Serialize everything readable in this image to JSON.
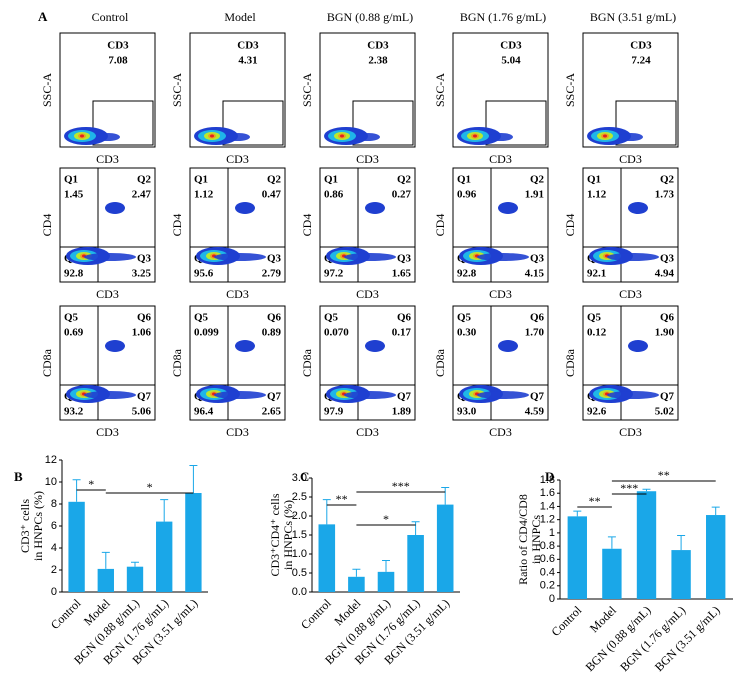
{
  "panel_a": {
    "label": "A",
    "columns": [
      "Control",
      "Model",
      "BGN (0.88 g/mL)",
      "BGN (1.76 g/mL)",
      "BGN (3.51 g/mL)"
    ],
    "rows": [
      {
        "y_axis": "SSC-A",
        "x_axis": "CD3",
        "gates": [
          [
            {
              "name": "CD3",
              "value": "7.08"
            }
          ],
          [
            {
              "name": "CD3",
              "value": "4.31"
            }
          ],
          [
            {
              "name": "CD3",
              "value": "2.38"
            }
          ],
          [
            {
              "name": "CD3",
              "value": "5.04"
            }
          ],
          [
            {
              "name": "CD3",
              "value": "7.24"
            }
          ]
        ]
      },
      {
        "y_axis": "CD4",
        "x_axis": "CD3",
        "gates": [
          [
            {
              "name": "Q1",
              "value": "1.45"
            },
            {
              "name": "Q2",
              "value": "2.47"
            },
            {
              "name": "Q3",
              "value": "3.25"
            },
            {
              "name": "Q4",
              "value": "92.8"
            }
          ],
          [
            {
              "name": "Q1",
              "value": "1.12"
            },
            {
              "name": "Q2",
              "value": "0.47"
            },
            {
              "name": "Q3",
              "value": "2.79"
            },
            {
              "name": "Q4",
              "value": "95.6"
            }
          ],
          [
            {
              "name": "Q1",
              "value": "0.86"
            },
            {
              "name": "Q2",
              "value": "0.27"
            },
            {
              "name": "Q3",
              "value": "1.65"
            },
            {
              "name": "Q4",
              "value": "97.2"
            }
          ],
          [
            {
              "name": "Q1",
              "value": "0.96"
            },
            {
              "name": "Q2",
              "value": "1.91"
            },
            {
              "name": "Q3",
              "value": "4.15"
            },
            {
              "name": "Q4",
              "value": "92.8"
            }
          ],
          [
            {
              "name": "Q1",
              "value": "1.12"
            },
            {
              "name": "Q2",
              "value": "1.73"
            },
            {
              "name": "Q3",
              "value": "4.94"
            },
            {
              "name": "Q4",
              "value": "92.1"
            }
          ]
        ]
      },
      {
        "y_axis": "CD8a",
        "x_axis": "CD3",
        "gates": [
          [
            {
              "name": "Q5",
              "value": "0.69"
            },
            {
              "name": "Q6",
              "value": "1.06"
            },
            {
              "name": "Q7",
              "value": "5.06"
            },
            {
              "name": "Q8",
              "value": "93.2"
            }
          ],
          [
            {
              "name": "Q5",
              "value": "0.099"
            },
            {
              "name": "Q6",
              "value": "0.89"
            },
            {
              "name": "Q7",
              "value": "2.65"
            },
            {
              "name": "Q8",
              "value": "96.4"
            }
          ],
          [
            {
              "name": "Q5",
              "value": "0.070"
            },
            {
              "name": "Q6",
              "value": "0.17"
            },
            {
              "name": "Q7",
              "value": "1.89"
            },
            {
              "name": "Q8",
              "value": "97.9"
            }
          ],
          [
            {
              "name": "Q5",
              "value": "0.30"
            },
            {
              "name": "Q6",
              "value": "1.70"
            },
            {
              "name": "Q7",
              "value": "4.59"
            },
            {
              "name": "Q8",
              "value": "93.0"
            }
          ],
          [
            {
              "name": "Q5",
              "value": "0.12"
            },
            {
              "name": "Q6",
              "value": "1.90"
            },
            {
              "name": "Q7",
              "value": "5.02"
            },
            {
              "name": "Q8",
              "value": "92.6"
            }
          ]
        ]
      }
    ]
  },
  "chart_data": [
    {
      "type": "bar",
      "label": "B",
      "ylabel": [
        "CD3⁺ cells",
        "in HNPCs (%)"
      ],
      "categories": [
        "Control",
        "Model",
        "BGN (0.88 g/mL)",
        "BGN (1.76 g/mL)",
        "BGN (3.51 g/mL)"
      ],
      "values": [
        8.2,
        2.1,
        2.3,
        6.4,
        9.0
      ],
      "errors": [
        2.0,
        1.5,
        0.4,
        2.0,
        2.5
      ],
      "color": "#1aa7e8",
      "ylim": [
        0,
        12
      ],
      "yticks": [
        0,
        2,
        4,
        6,
        8,
        10,
        12
      ],
      "significance": [
        {
          "from": 0,
          "to": 1,
          "label": "*"
        },
        {
          "from": 1,
          "to": 4,
          "label": "*"
        }
      ]
    },
    {
      "type": "bar",
      "label": "C",
      "ylabel": [
        "CD3⁺CD4⁺ cells",
        "in HNPCs (%)"
      ],
      "categories": [
        "Control",
        "Model",
        "BGN (0.88 g/mL)",
        "BGN (1.76 g/mL)",
        "BGN (3.51 g/mL)"
      ],
      "values": [
        1.78,
        0.4,
        0.53,
        1.5,
        2.3
      ],
      "errors": [
        0.65,
        0.2,
        0.3,
        0.35,
        0.45
      ],
      "color": "#1aa7e8",
      "ylim": [
        0,
        3
      ],
      "yticks": [
        {
          "value": 0,
          "label": "0.0"
        },
        0.5,
        {
          "value": 1,
          "label": "1.0"
        },
        1.5,
        {
          "value": 2,
          "label": "2.0"
        },
        2.5,
        {
          "value": 3,
          "label": "3.0"
        }
      ],
      "significance": [
        {
          "from": 0,
          "to": 1,
          "label": "**"
        },
        {
          "from": 1,
          "to": 4,
          "label": "***"
        },
        {
          "from": 1,
          "to": 3,
          "label": "*"
        }
      ]
    },
    {
      "type": "bar",
      "label": "D",
      "ylabel": [
        "Ratio of CD4/CD8",
        "in HNPCs"
      ],
      "categories": [
        "Control",
        "Model",
        "BGN (0.88 g/mL)",
        "BGN (1.76 g/mL)",
        "BGN (3.51 g/mL)"
      ],
      "values": [
        1.25,
        0.76,
        1.63,
        0.74,
        1.27
      ],
      "errors": [
        0.08,
        0.18,
        0.03,
        0.22,
        0.12
      ],
      "color": "#1aa7e8",
      "ylim": [
        0,
        1.8
      ],
      "yticks": [
        0,
        0.2,
        0.4,
        0.6,
        0.8,
        1,
        1.2,
        1.4,
        1.6,
        1.8
      ],
      "significance": [
        {
          "from": 0,
          "to": 1,
          "label": "**"
        },
        {
          "from": 1,
          "to": 2,
          "label": "***"
        },
        {
          "from": 1,
          "to": 4,
          "label": "**"
        }
      ]
    }
  ]
}
